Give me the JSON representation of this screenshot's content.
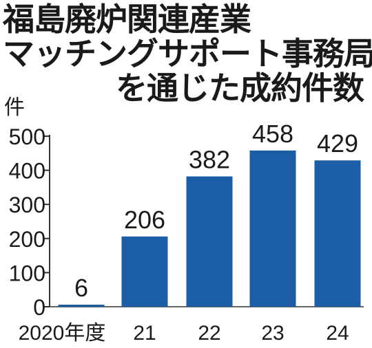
{
  "title_lines": [
    "福島廃炉関連産業",
    "マッチングサポート事務局",
    "を通じた成約件数"
  ],
  "unit": "件",
  "colors": {
    "bar": "#1b5ea6",
    "axis": "#333333",
    "text": "#1a1a1a"
  },
  "chart_data": {
    "type": "bar",
    "title": "福島廃炉関連産業マッチングサポート事務局を通じた成約件数",
    "ylabel": "件",
    "xlabel": "",
    "categories": [
      "2020年度",
      "21",
      "22",
      "23",
      "24"
    ],
    "values": [
      6,
      206,
      382,
      458,
      429
    ],
    "data_labels": [
      "6",
      "206",
      "382",
      "458",
      "429"
    ],
    "ylim": [
      0,
      500
    ],
    "yticks": [
      0,
      100,
      200,
      300,
      400,
      500
    ],
    "ytick_labels": [
      "0",
      "100",
      "200",
      "300",
      "400",
      "500"
    ],
    "grid": false,
    "legend": "none"
  }
}
